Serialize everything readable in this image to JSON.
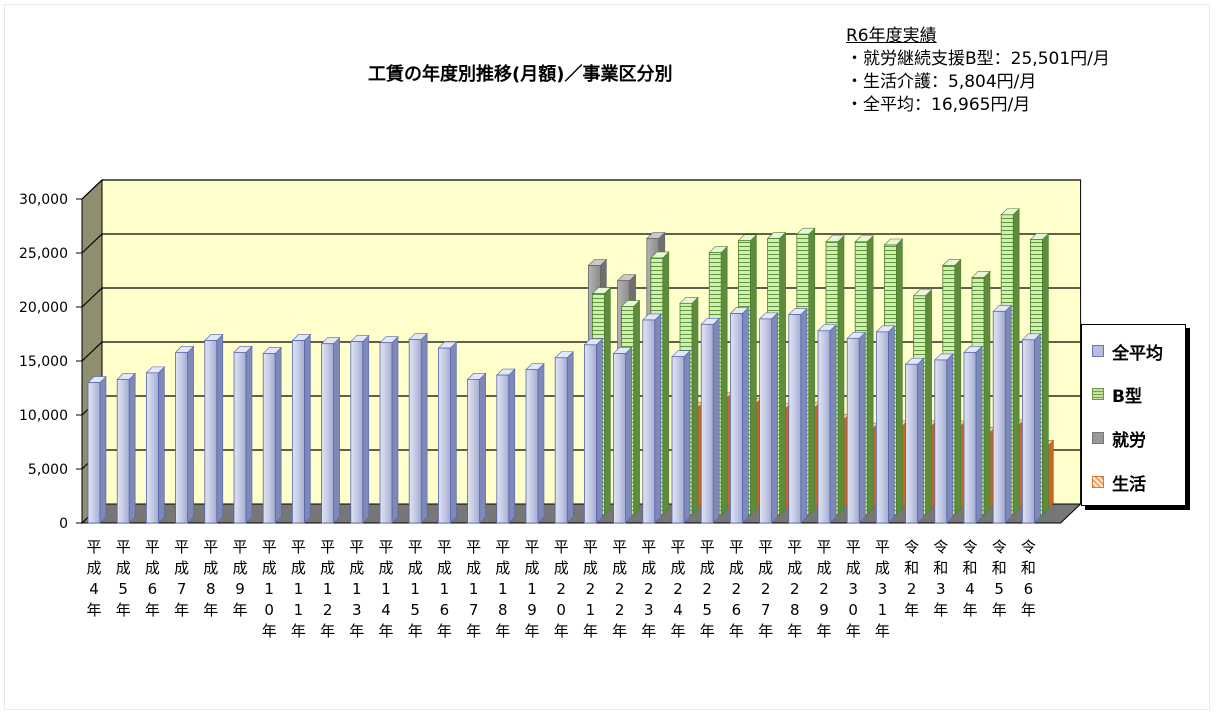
{
  "chart_data": {
    "type": "bar",
    "title": "工賃の年度別推移(月額)／事業区分別",
    "ylim": [
      0,
      30000
    ],
    "yticks": [
      "0",
      "5,000",
      "10,000",
      "15,000",
      "20,000",
      "25,000",
      "30,000"
    ],
    "grid": true,
    "legend_position": "right",
    "categories": [
      "平成4年",
      "平成5年",
      "平成6年",
      "平成7年",
      "平成8年",
      "平成9年",
      "平成10年",
      "平成11年",
      "平成12年",
      "平成13年",
      "平成14年",
      "平成15年",
      "平成16年",
      "平成17年",
      "平成18年",
      "平成19年",
      "平成20年",
      "平成21年",
      "平成22年",
      "平成23年",
      "平成24年",
      "平成25年",
      "平成26年",
      "平成27年",
      "平成28年",
      "平成29年",
      "平成30年",
      "平成31年",
      "令和2年",
      "令和3年",
      "令和4年",
      "令和5年",
      "令和6年"
    ],
    "category_labels": [
      [
        "平",
        "成",
        "4",
        "年"
      ],
      [
        "平",
        "成",
        "5",
        "年"
      ],
      [
        "平",
        "成",
        "6",
        "年"
      ],
      [
        "平",
        "成",
        "7",
        "年"
      ],
      [
        "平",
        "成",
        "8",
        "年"
      ],
      [
        "平",
        "成",
        "9",
        "年"
      ],
      [
        "平",
        "成",
        "1",
        "0",
        "年"
      ],
      [
        "平",
        "成",
        "1",
        "1",
        "年"
      ],
      [
        "平",
        "成",
        "1",
        "2",
        "年"
      ],
      [
        "平",
        "成",
        "1",
        "3",
        "年"
      ],
      [
        "平",
        "成",
        "1",
        "4",
        "年"
      ],
      [
        "平",
        "成",
        "1",
        "5",
        "年"
      ],
      [
        "平",
        "成",
        "1",
        "6",
        "年"
      ],
      [
        "平",
        "成",
        "1",
        "7",
        "年"
      ],
      [
        "平",
        "成",
        "1",
        "8",
        "年"
      ],
      [
        "平",
        "成",
        "1",
        "9",
        "年"
      ],
      [
        "平",
        "成",
        "2",
        "0",
        "年"
      ],
      [
        "平",
        "成",
        "2",
        "1",
        "年"
      ],
      [
        "平",
        "成",
        "2",
        "2",
        "年"
      ],
      [
        "平",
        "成",
        "2",
        "3",
        "年"
      ],
      [
        "平",
        "成",
        "2",
        "4",
        "年"
      ],
      [
        "平",
        "成",
        "2",
        "5",
        "年"
      ],
      [
        "平",
        "成",
        "2",
        "6",
        "年"
      ],
      [
        "平",
        "成",
        "2",
        "7",
        "年"
      ],
      [
        "平",
        "成",
        "2",
        "8",
        "年"
      ],
      [
        "平",
        "成",
        "2",
        "9",
        "年"
      ],
      [
        "平",
        "成",
        "3",
        "0",
        "年"
      ],
      [
        "平",
        "成",
        "3",
        "1",
        "年"
      ],
      [
        "令",
        "和",
        "2",
        "年"
      ],
      [
        "令",
        "和",
        "3",
        "年"
      ],
      [
        "令",
        "和",
        "4",
        "年"
      ],
      [
        "令",
        "和",
        "5",
        "年"
      ],
      [
        "令",
        "和",
        "6",
        "年"
      ]
    ],
    "series": [
      {
        "name": "全平均",
        "color": "#b8bfdc",
        "values": [
          13000,
          13300,
          13900,
          15800,
          16900,
          15800,
          15700,
          16900,
          16600,
          16800,
          16700,
          17000,
          16200,
          13300,
          13700,
          14200,
          15300,
          16500,
          15700,
          18800,
          15400,
          18400,
          19400,
          18900,
          19300,
          17800,
          17100,
          17700,
          14700,
          15100,
          15800,
          19600,
          16965
        ]
      },
      {
        "name": "B型",
        "color": "#8cc063",
        "values": [
          null,
          null,
          null,
          null,
          null,
          null,
          null,
          null,
          null,
          null,
          null,
          null,
          null,
          null,
          null,
          null,
          null,
          20500,
          19300,
          23800,
          19600,
          24300,
          25400,
          25600,
          26000,
          25300,
          25300,
          25000,
          20300,
          23100,
          22000,
          27800,
          25501
        ]
      },
      {
        "name": "就労",
        "color": "#999999",
        "values": [
          null,
          null,
          null,
          null,
          null,
          null,
          null,
          null,
          null,
          null,
          null,
          null,
          null,
          null,
          null,
          null,
          null,
          23100,
          21700,
          25600,
          null,
          null,
          null,
          null,
          null,
          null,
          null,
          null,
          null,
          null,
          null,
          null,
          null
        ]
      },
      {
        "name": "生活",
        "color": "#f0904a",
        "values": [
          null,
          null,
          null,
          null,
          null,
          null,
          null,
          null,
          null,
          null,
          null,
          null,
          null,
          null,
          null,
          null,
          null,
          null,
          null,
          null,
          9300,
          10200,
          9700,
          9200,
          9300,
          8200,
          7400,
          7600,
          7600,
          7600,
          7000,
          7700,
          5804
        ]
      }
    ]
  },
  "results": {
    "heading": "R6年度実績",
    "lines": [
      "・就労継続支援B型：25,501円/月",
      "・生活介護：5,804円/月",
      "・全平均：16,965円/月"
    ]
  },
  "legend": [
    "全平均",
    "B型",
    "就労",
    "生活"
  ]
}
